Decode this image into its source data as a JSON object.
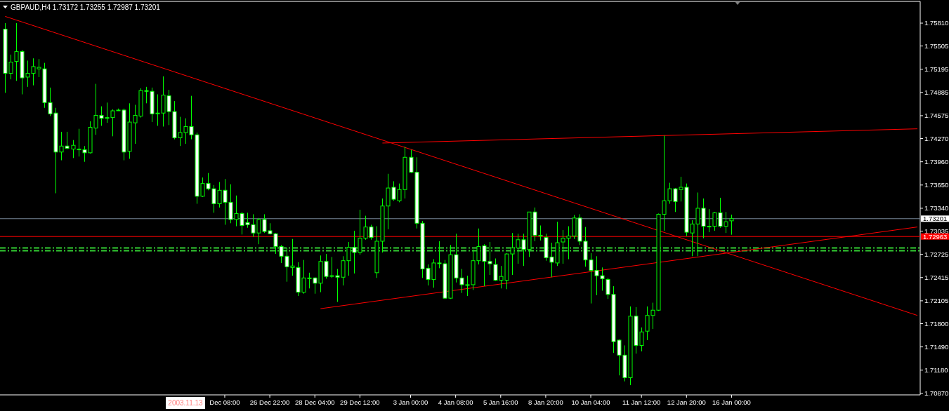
{
  "chart_data": {
    "type": "candlestick",
    "title": "GBPAUD,H4 1.73172 1.73255 1.72987 1.73201",
    "categories": [
      null,
      null,
      null,
      null,
      null,
      null,
      null,
      null,
      null,
      null,
      null,
      null,
      null,
      null,
      null,
      null,
      null,
      null,
      null,
      null,
      null,
      null,
      null,
      null,
      null,
      null,
      null,
      null,
      null,
      null,
      null,
      null,
      null,
      null,
      null,
      null,
      null,
      null,
      null,
      "Dec 08:00",
      null,
      null,
      null,
      null,
      null,
      null,
      null,
      "26 Dec 22:00",
      null,
      null,
      null,
      null,
      null,
      null,
      null,
      "28 Dec 04:00",
      null,
      null,
      null,
      null,
      null,
      null,
      null,
      "29 Dec 12:00",
      null,
      null,
      null,
      null,
      null,
      null,
      null,
      null,
      "3 Jan 00:00",
      null,
      null,
      null,
      null,
      null,
      null,
      null,
      "4 Jan 08:00",
      null,
      null,
      null,
      null,
      null,
      null,
      null,
      "5 Jan 16:00",
      null,
      null,
      null,
      null,
      null,
      null,
      null,
      "8 Jan 20:00",
      null,
      null,
      null,
      null,
      null,
      null,
      null,
      "10 Jan 04:00",
      null,
      null,
      null,
      null,
      null,
      null,
      null,
      null,
      "11 Jan 12:00",
      null,
      null,
      null,
      null,
      null,
      null,
      null,
      "12 Jan 20:00",
      null,
      null,
      null,
      null,
      null,
      null,
      null,
      "16 Jan 00:00",
      null,
      null,
      null,
      null,
      null,
      null,
      null,
      null,
      null,
      null,
      null,
      null,
      null,
      null,
      null,
      null,
      null,
      null,
      null,
      null,
      null,
      null,
      null,
      null,
      null,
      null,
      null,
      null,
      null,
      null,
      null,
      null,
      null
    ],
    "ohlc": [
      [
        1.7573,
        1.7581,
        1.7488,
        1.7514
      ],
      [
        1.7514,
        1.7539,
        1.7506,
        1.7529
      ],
      [
        1.753,
        1.7581,
        1.7504,
        1.7543
      ],
      [
        1.7543,
        1.7545,
        1.7486,
        1.7508
      ],
      [
        1.7509,
        1.7531,
        1.7496,
        1.7514
      ],
      [
        1.7514,
        1.7534,
        1.7498,
        1.7523
      ],
      [
        1.752,
        1.7533,
        1.7509,
        1.7522
      ],
      [
        1.752,
        1.7528,
        1.7468,
        1.7475
      ],
      [
        1.7475,
        1.7495,
        1.7457,
        1.746
      ],
      [
        1.7461,
        1.7468,
        1.7354,
        1.7409
      ],
      [
        1.7409,
        1.7436,
        1.7398,
        1.7417
      ],
      [
        1.7417,
        1.7436,
        1.7413,
        1.7414
      ],
      [
        1.7413,
        1.7425,
        1.7401,
        1.7418
      ],
      [
        1.7412,
        1.744,
        1.7403,
        1.7413
      ],
      [
        1.7412,
        1.7417,
        1.7396,
        1.7408
      ],
      [
        1.7408,
        1.745,
        1.7407,
        1.7442
      ],
      [
        1.7441,
        1.75,
        1.7432,
        1.7458
      ],
      [
        1.7458,
        1.747,
        1.7444,
        1.7454
      ],
      [
        1.7454,
        1.7475,
        1.7448,
        1.7455
      ],
      [
        1.7455,
        1.7466,
        1.743,
        1.7464
      ],
      [
        1.7465,
        1.7467,
        1.7464,
        1.7465
      ],
      [
        1.7465,
        1.7467,
        1.7398,
        1.7409
      ],
      [
        1.741,
        1.7474,
        1.74,
        1.7449
      ],
      [
        1.7448,
        1.7472,
        1.742,
        1.7458
      ],
      [
        1.7457,
        1.7494,
        1.7455,
        1.7491
      ],
      [
        1.7491,
        1.7496,
        1.7474,
        1.749
      ],
      [
        1.749,
        1.7495,
        1.7449,
        1.746
      ],
      [
        1.746,
        1.7486,
        1.7444,
        1.7461
      ],
      [
        1.7461,
        1.751,
        1.7443,
        1.7485
      ],
      [
        1.7484,
        1.7492,
        1.7445,
        1.7463
      ],
      [
        1.7463,
        1.7477,
        1.7426,
        1.7428
      ],
      [
        1.7428,
        1.7456,
        1.7417,
        1.7435
      ],
      [
        1.7435,
        1.7454,
        1.742,
        1.7443
      ],
      [
        1.7443,
        1.7484,
        1.7426,
        1.7432
      ],
      [
        1.7432,
        1.7435,
        1.734,
        1.735
      ],
      [
        1.735,
        1.7375,
        1.7349,
        1.7367
      ],
      [
        1.7367,
        1.7381,
        1.7358,
        1.736
      ],
      [
        1.736,
        1.7365,
        1.7328,
        1.734
      ],
      [
        1.734,
        1.7369,
        1.7335,
        1.7358
      ],
      [
        1.7358,
        1.7373,
        1.7312,
        1.7342
      ],
      [
        1.7342,
        1.7366,
        1.7314,
        1.7319
      ],
      [
        1.7319,
        1.7351,
        1.731,
        1.7327
      ],
      [
        1.7327,
        1.7329,
        1.7299,
        1.7311
      ],
      [
        1.7315,
        1.7328,
        1.7308,
        1.7312
      ],
      [
        1.7312,
        1.7326,
        1.7296,
        1.7301
      ],
      [
        1.7301,
        1.7321,
        1.7286,
        1.7319
      ],
      [
        1.7319,
        1.7326,
        1.7301,
        1.7303
      ],
      [
        1.7304,
        1.7314,
        1.7299,
        1.73
      ],
      [
        1.73,
        1.7301,
        1.7273,
        1.7283
      ],
      [
        1.7283,
        1.7285,
        1.7261,
        1.727
      ],
      [
        1.727,
        1.7281,
        1.7236,
        1.7256
      ],
      [
        1.7255,
        1.7293,
        1.7244,
        1.7257
      ],
      [
        1.7255,
        1.7262,
        1.7217,
        1.7222
      ],
      [
        1.7222,
        1.7265,
        1.722,
        1.7241
      ],
      [
        1.7241,
        1.7248,
        1.7227,
        1.7241
      ],
      [
        1.7241,
        1.7242,
        1.722,
        1.7234
      ],
      [
        1.7234,
        1.7271,
        1.7222,
        1.7263
      ],
      [
        1.7263,
        1.7273,
        1.724,
        1.7243
      ],
      [
        1.7244,
        1.7269,
        1.7241,
        1.7244
      ],
      [
        1.7244,
        1.7253,
        1.7209,
        1.7242
      ],
      [
        1.7242,
        1.727,
        1.7231,
        1.7264
      ],
      [
        1.7264,
        1.7289,
        1.7244,
        1.7282
      ],
      [
        1.7282,
        1.7304,
        1.7247,
        1.7275
      ],
      [
        1.7275,
        1.7332,
        1.7272,
        1.7294
      ],
      [
        1.7294,
        1.7324,
        1.7292,
        1.7309
      ],
      [
        1.7309,
        1.7312,
        1.7292,
        1.7295
      ],
      [
        1.7248,
        1.731,
        1.7241,
        1.729
      ],
      [
        1.729,
        1.7347,
        1.7275,
        1.7337
      ],
      [
        1.7337,
        1.738,
        1.7306,
        1.7361
      ],
      [
        1.7362,
        1.737,
        1.7344,
        1.7346
      ],
      [
        1.7344,
        1.7367,
        1.7342,
        1.7359
      ],
      [
        1.7359,
        1.7416,
        1.7347,
        1.7402
      ],
      [
        1.7402,
        1.7412,
        1.7381,
        1.7382
      ],
      [
        1.7382,
        1.7402,
        1.7307,
        1.7314
      ],
      [
        1.7314,
        1.7317,
        1.7241,
        1.7253
      ],
      [
        1.7254,
        1.7259,
        1.7231,
        1.7239
      ],
      [
        1.7239,
        1.7266,
        1.7228,
        1.7261
      ],
      [
        1.7261,
        1.729,
        1.7254,
        1.726
      ],
      [
        1.726,
        1.7265,
        1.7213,
        1.7214
      ],
      [
        1.7214,
        1.7285,
        1.7213,
        1.7272
      ],
      [
        1.7272,
        1.73,
        1.7235,
        1.7241
      ],
      [
        1.7241,
        1.7253,
        1.7221,
        1.7232
      ],
      [
        1.7232,
        1.7244,
        1.7217,
        1.7232
      ],
      [
        1.7232,
        1.7279,
        1.7225,
        1.7264
      ],
      [
        1.7264,
        1.7307,
        1.7259,
        1.7283
      ],
      [
        1.7284,
        1.7286,
        1.723,
        1.7263
      ],
      [
        1.7263,
        1.7289,
        1.7245,
        1.726
      ],
      [
        1.7259,
        1.7267,
        1.7237,
        1.7238
      ],
      [
        1.7238,
        1.7257,
        1.7227,
        1.7243
      ],
      [
        1.7238,
        1.7274,
        1.7226,
        1.7273
      ],
      [
        1.7273,
        1.7301,
        1.7245,
        1.7281
      ],
      [
        1.7281,
        1.73,
        1.726,
        1.7292
      ],
      [
        1.7292,
        1.73,
        1.7257,
        1.7279
      ],
      [
        1.7279,
        1.7329,
        1.7269,
        1.7329
      ],
      [
        1.7329,
        1.7335,
        1.729,
        1.7298
      ],
      [
        1.7297,
        1.7311,
        1.7291,
        1.7298
      ],
      [
        1.7295,
        1.73,
        1.7264,
        1.7268
      ],
      [
        1.7269,
        1.7288,
        1.7242,
        1.7262
      ],
      [
        1.7261,
        1.7316,
        1.7257,
        1.7288
      ],
      [
        1.7289,
        1.7305,
        1.726,
        1.7294
      ],
      [
        1.7294,
        1.731,
        1.7266,
        1.7297
      ],
      [
        1.7297,
        1.7325,
        1.7293,
        1.7321
      ],
      [
        1.7321,
        1.7326,
        1.7285,
        1.729
      ],
      [
        1.729,
        1.7309,
        1.7256,
        1.7265
      ],
      [
        1.7265,
        1.7274,
        1.7207,
        1.7251
      ],
      [
        1.7251,
        1.727,
        1.7218,
        1.7244
      ],
      [
        1.7244,
        1.7255,
        1.7224,
        1.724
      ],
      [
        1.7239,
        1.7241,
        1.7213,
        1.7219
      ],
      [
        1.7219,
        1.723,
        1.7141,
        1.7156
      ],
      [
        1.7158,
        1.7159,
        1.7111,
        1.7138
      ],
      [
        1.7138,
        1.7151,
        1.7103,
        1.7108
      ],
      [
        1.7108,
        1.7203,
        1.7098,
        1.719
      ],
      [
        1.719,
        1.7202,
        1.714,
        1.7151
      ],
      [
        1.7151,
        1.7175,
        1.7143,
        1.7169
      ],
      [
        1.717,
        1.7203,
        1.7158,
        1.7191
      ],
      [
        1.7191,
        1.7208,
        1.7173,
        1.7198
      ],
      [
        1.7198,
        1.7327,
        1.7197,
        1.7326
      ],
      [
        1.7326,
        1.7431,
        1.7304,
        1.7344
      ],
      [
        1.7344,
        1.7368,
        1.734,
        1.736
      ],
      [
        1.736,
        1.7361,
        1.7329,
        1.7343
      ],
      [
        1.7359,
        1.7376,
        1.7343,
        1.7362
      ],
      [
        1.7362,
        1.7367,
        1.7297,
        1.7302
      ],
      [
        1.7301,
        1.7318,
        1.727,
        1.7313
      ],
      [
        1.7313,
        1.7355,
        1.727,
        1.7334
      ],
      [
        1.7334,
        1.7347,
        1.7294,
        1.731
      ],
      [
        1.731,
        1.7333,
        1.7302,
        1.731
      ],
      [
        1.731,
        1.7329,
        1.7304,
        1.7328
      ],
      [
        1.7328,
        1.7348,
        1.7308,
        1.731
      ],
      [
        1.731,
        1.7329,
        1.7301,
        1.7316
      ],
      [
        1.73172,
        1.73255,
        1.72987,
        1.73201
      ],
      null,
      null,
      null,
      null,
      null,
      null,
      null,
      null,
      null,
      null,
      null,
      null,
      null,
      null,
      null,
      null,
      null,
      null,
      null,
      null,
      null,
      null,
      null,
      null,
      null,
      null,
      null,
      null,
      null,
      null,
      null,
      null,
      null
    ],
    "series": [
      {
        "type": "line",
        "color": "#ff0000",
        "values": [
          1.759,
          null,
          null,
          null,
          null,
          null,
          null,
          null,
          null,
          null,
          null,
          null,
          null,
          null,
          null,
          null,
          null,
          null,
          null,
          null,
          null,
          null,
          null,
          null,
          null,
          null,
          null,
          null,
          null,
          null,
          null,
          null,
          null,
          null,
          null,
          null,
          null,
          null,
          null,
          null,
          null,
          null,
          null,
          null,
          null,
          null,
          null,
          null,
          null,
          null,
          null,
          null,
          null,
          null,
          null,
          null,
          null,
          null,
          null,
          null,
          null,
          null,
          null,
          null,
          null,
          null,
          null,
          null,
          null,
          null,
          null,
          null,
          null,
          null,
          null,
          null,
          null,
          null,
          null,
          null,
          null,
          null,
          null,
          null,
          null,
          null,
          null,
          null,
          null,
          null,
          null,
          null,
          null,
          null,
          null,
          null,
          null,
          null,
          null,
          null,
          null,
          null,
          null,
          null,
          null,
          null,
          null,
          null,
          null,
          null,
          null,
          null,
          null,
          null,
          null,
          null,
          null,
          null,
          null,
          null,
          null,
          null,
          null,
          null,
          null,
          null,
          null,
          null,
          null,
          null,
          null,
          null,
          null,
          null,
          null,
          null,
          null,
          null,
          null,
          null,
          null,
          null,
          null,
          null,
          null,
          null,
          null,
          null,
          null,
          null,
          null,
          null,
          null,
          null,
          null,
          null,
          null,
          null,
          null,
          null,
          null,
          null,
          1.7191
        ]
      },
      {
        "type": "line",
        "color": "#ff0000",
        "values": [
          null,
          null,
          null,
          null,
          null,
          null,
          null,
          null,
          null,
          null,
          null,
          null,
          null,
          null,
          null,
          null,
          null,
          null,
          null,
          null,
          null,
          null,
          null,
          null,
          null,
          null,
          null,
          null,
          null,
          null,
          null,
          null,
          null,
          null,
          null,
          null,
          null,
          null,
          null,
          null,
          null,
          null,
          null,
          null,
          null,
          null,
          null,
          null,
          null,
          null,
          null,
          null,
          null,
          null,
          null,
          null,
          null,
          null,
          null,
          null,
          null,
          null,
          null,
          null,
          null,
          null,
          null,
          1.7421,
          null,
          null,
          null,
          null,
          null,
          null,
          null,
          null,
          null,
          null,
          null,
          null,
          null,
          null,
          null,
          null,
          null,
          null,
          null,
          null,
          null,
          null,
          null,
          null,
          null,
          null,
          null,
          null,
          null,
          null,
          null,
          null,
          null,
          null,
          null,
          null,
          null,
          null,
          null,
          null,
          null,
          null,
          null,
          null,
          null,
          null,
          null,
          null,
          null,
          null,
          null,
          null,
          null,
          null,
          null,
          null,
          null,
          null,
          null,
          null,
          null,
          null,
          null,
          null,
          null,
          null,
          null,
          null,
          null,
          null,
          null,
          null,
          null,
          null,
          null,
          null,
          null,
          null,
          null,
          null,
          null,
          null,
          null,
          null,
          null,
          null,
          null,
          null,
          null,
          null,
          null,
          null,
          null,
          null,
          1.744
        ]
      },
      {
        "type": "line",
        "color": "#ff0000",
        "values": [
          null,
          null,
          null,
          null,
          null,
          null,
          null,
          null,
          null,
          null,
          null,
          null,
          null,
          null,
          null,
          null,
          null,
          null,
          null,
          null,
          null,
          null,
          null,
          null,
          null,
          null,
          null,
          null,
          null,
          null,
          null,
          null,
          null,
          null,
          null,
          null,
          null,
          null,
          null,
          null,
          null,
          null,
          null,
          null,
          null,
          null,
          null,
          null,
          null,
          null,
          null,
          null,
          null,
          null,
          null,
          null,
          1.72,
          null,
          null,
          null,
          null,
          null,
          null,
          null,
          null,
          null,
          null,
          null,
          null,
          null,
          null,
          null,
          null,
          null,
          null,
          null,
          null,
          null,
          null,
          null,
          null,
          null,
          null,
          null,
          null,
          null,
          null,
          null,
          null,
          null,
          null,
          null,
          null,
          null,
          null,
          null,
          null,
          null,
          null,
          null,
          null,
          null,
          null,
          null,
          null,
          null,
          null,
          null,
          null,
          null,
          null,
          null,
          null,
          null,
          null,
          null,
          null,
          null,
          null,
          null,
          null,
          null,
          null,
          null,
          null,
          null,
          null,
          null,
          null,
          null,
          null,
          null,
          null,
          null,
          null,
          null,
          null,
          null,
          null,
          null,
          null,
          null,
          null,
          null,
          null,
          null,
          null,
          null,
          null,
          null,
          null,
          null,
          null,
          null,
          null,
          null,
          null,
          null,
          null,
          null,
          null,
          null,
          1.7309
        ]
      }
    ],
    "ylim": [
      1.7085,
      1.761
    ],
    "yticks": [
      {
        "value": 1.7581,
        "label": "1.75810"
      },
      1.75505,
      1.75195,
      1.74885,
      1.74575,
      {
        "value": 1.7427,
        "label": "1.74270"
      },
      {
        "value": 1.7396,
        "label": "1.73960"
      },
      {
        "value": 1.7365,
        "label": "1.73650"
      },
      {
        "value": 1.7334,
        "label": "1.73340"
      },
      1.73035,
      1.72725,
      1.72415,
      1.72105,
      {
        "value": 1.718,
        "label": "1.71800"
      },
      {
        "value": 1.7149,
        "label": "1.71490"
      },
      {
        "value": 1.7118,
        "label": "1.71180"
      },
      {
        "value": 1.7087,
        "label": "1.70870"
      }
    ],
    "ref_lines": [
      {
        "axis": "y",
        "value": 1.73201,
        "label": "1.73201",
        "color": "#778899"
      },
      {
        "axis": "y",
        "value": 1.72963,
        "label": "1.72963",
        "color": "#ff0000"
      },
      {
        "axis": "y",
        "value": 1.72811,
        "color": "#32cd32",
        "line_style": "dashed"
      },
      {
        "axis": "y",
        "value": 1.72773,
        "color": "#32cd32",
        "line_style": "dashed"
      }
    ],
    "annotations": [
      "2003.11.13"
    ]
  }
}
